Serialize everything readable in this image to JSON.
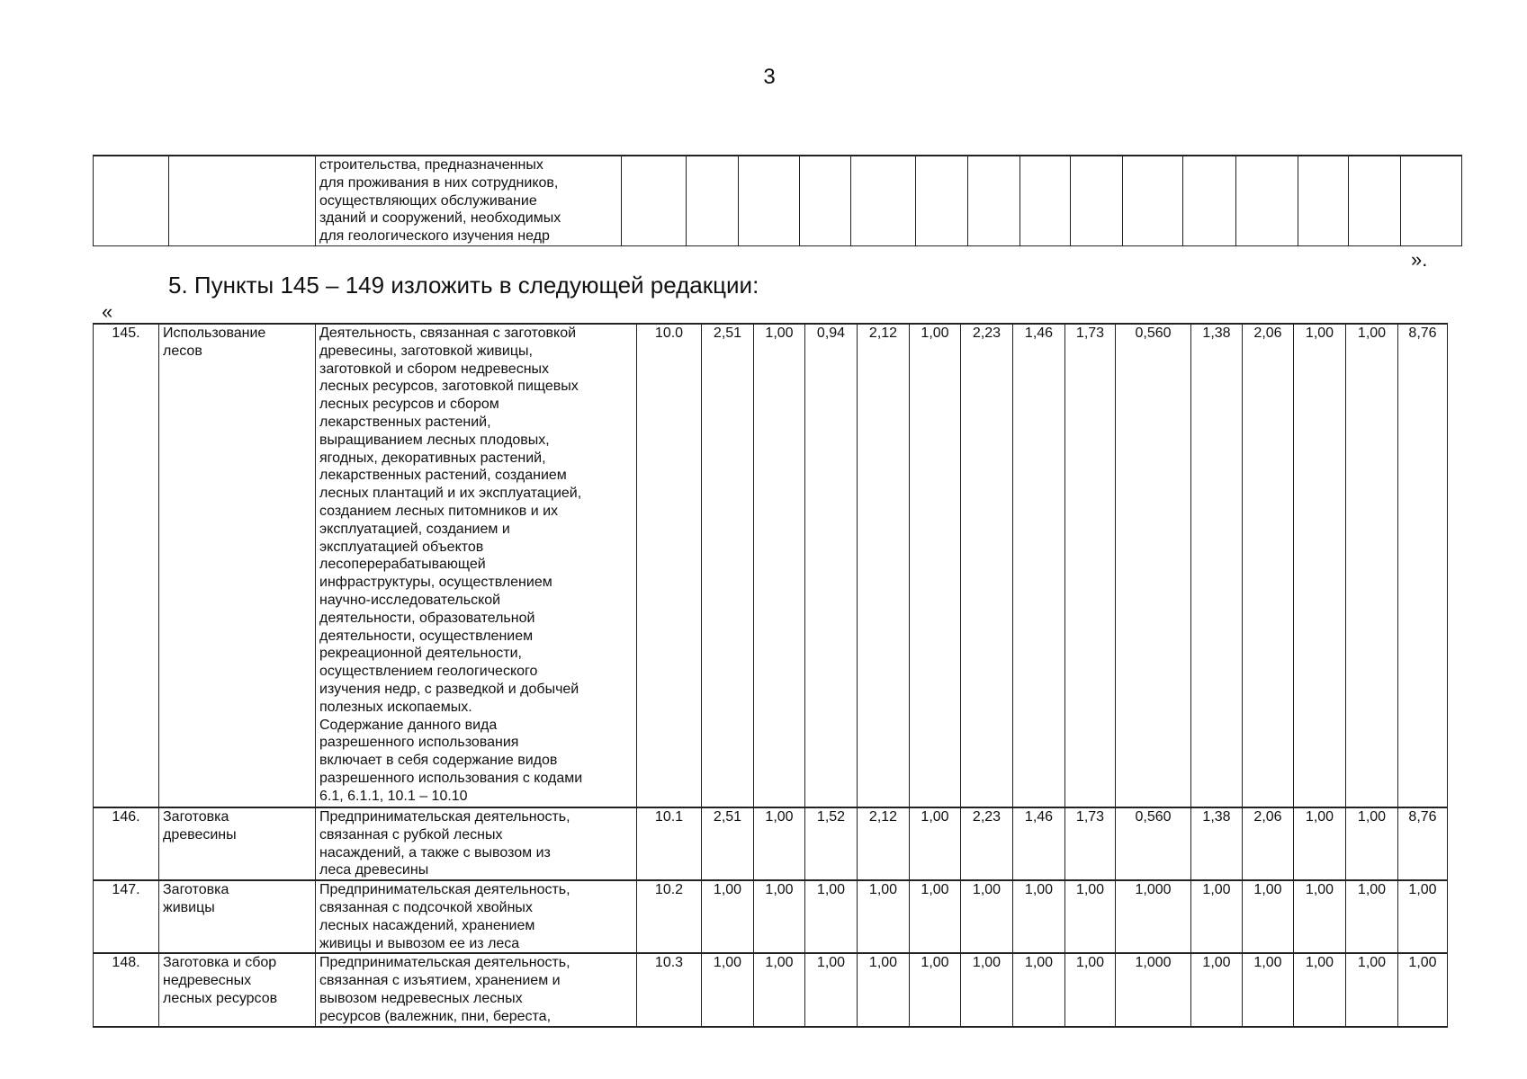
{
  "page_number": "3",
  "top_table": {
    "description": "строительства, предназначенных\nдля проживания в них сотрудников,\nосуществляющих обслуживание\nзданий и сооружений, необходимых\nдля геологического изучения недр",
    "empty_value_columns": 15
  },
  "close_quote": "».",
  "heading": "5. Пункты 145 – 149 изложить в следующей редакции:",
  "open_quote": "«",
  "rows": [
    {
      "number": "145.",
      "name": "Использование\nлесов",
      "description": "Деятельность, связанная с заготовкой\nдревесины, заготовкой живицы,\nзаготовкой и сбором недревесных\nлесных ресурсов, заготовкой пищевых\nлесных ресурсов и сбором\nлекарственных растений,\nвыращиванием лесных плодовых,\nягодных, декоративных растений,\nлекарственных растений, созданием\nлесных плантаций и их эксплуатацией,\nсозданием лесных питомников и их\nэксплуатацией, созданием и\nэксплуатацией объектов\nлесоперерабатывающей\nинфраструктуры, осуществлением\nнаучно-исследовательской\nдеятельности, образовательной\nдеятельности, осуществлением\nрекреационной деятельности,\nосуществлением геологического\nизучения недр, с разведкой и добычей\nполезных ископаемых.\nСодержание данного вида\nразрешенного использования\nвключает в себя содержание видов\nразрешенного использования с кодами\n6.1, 6.1.1, 10.1 – 10.10",
      "code": "10.0",
      "values": [
        "2,51",
        "1,00",
        "0,94",
        "2,12",
        "1,00",
        "2,23",
        "1,46",
        "1,73",
        "0,560",
        "1,38",
        "2,06",
        "1,00",
        "1,00",
        "8,76"
      ]
    },
    {
      "number": "146.",
      "name": "Заготовка\nдревесины",
      "description": "Предпринимательская деятельность,\nсвязанная с рубкой лесных\nнасаждений, а также с вывозом из\nлеса древесины",
      "code": "10.1",
      "values": [
        "2,51",
        "1,00",
        "1,52",
        "2,12",
        "1,00",
        "2,23",
        "1,46",
        "1,73",
        "0,560",
        "1,38",
        "2,06",
        "1,00",
        "1,00",
        "8,76"
      ]
    },
    {
      "number": "147.",
      "name": "Заготовка\nживицы",
      "description": "Предпринимательская деятельность,\nсвязанная с подсочкой хвойных\nлесных насаждений, хранением\nживицы и вывозом ее из леса",
      "code": "10.2",
      "values": [
        "1,00",
        "1,00",
        "1,00",
        "1,00",
        "1,00",
        "1,00",
        "1,00",
        "1,00",
        "1,000",
        "1,00",
        "1,00",
        "1,00",
        "1,00",
        "1,00"
      ]
    },
    {
      "number": "148.",
      "name": "Заготовка и сбор\nнедревесных\nлесных ресурсов",
      "description": "Предпринимательская деятельность,\nсвязанная с изъятием, хранением и\nвывозом недревесных лесных\nресурсов (валежник, пни, береста,",
      "code": "10.3",
      "values": [
        "1,00",
        "1,00",
        "1,00",
        "1,00",
        "1,00",
        "1,00",
        "1,00",
        "1,00",
        "1,000",
        "1,00",
        "1,00",
        "1,00",
        "1,00",
        "1,00"
      ]
    }
  ]
}
